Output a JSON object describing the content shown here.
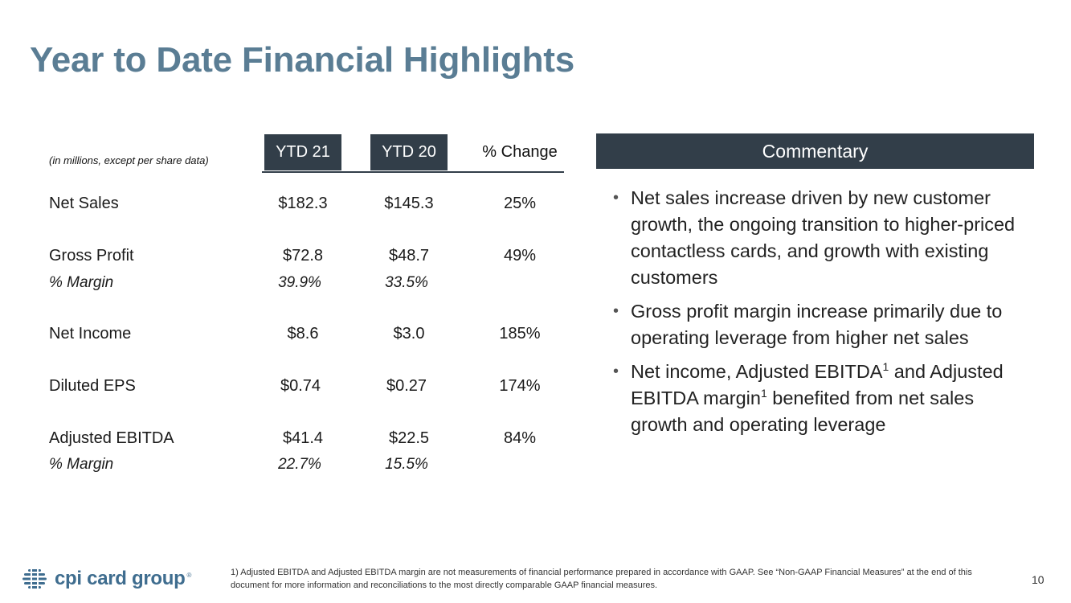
{
  "title": "Year to Date Financial Highlights",
  "table": {
    "units_note": "(in millions, except per share data)",
    "columns": [
      "YTD 21",
      "YTD 20",
      "% Change"
    ],
    "rows": [
      {
        "label": "Net Sales",
        "values": [
          "$182.3",
          "$145.3",
          "25%"
        ],
        "italic": false
      },
      {
        "label": "Gross Profit",
        "values": [
          "$72.8",
          "$48.7",
          "49%"
        ],
        "italic": false
      },
      {
        "label": "% Margin",
        "values": [
          "39.9%",
          "33.5%",
          ""
        ],
        "italic": true
      },
      {
        "label": "Net Income",
        "values": [
          "$8.6",
          "$3.0",
          "185%"
        ],
        "italic": false
      },
      {
        "label": "Diluted EPS",
        "values": [
          "$0.74",
          "$0.27",
          "174%"
        ],
        "italic": false
      },
      {
        "label": "Adjusted EBITDA",
        "values": [
          "$41.4",
          "$22.5",
          "84%"
        ],
        "italic": false
      },
      {
        "label": "% Margin",
        "values": [
          "22.7%",
          "15.5%",
          ""
        ],
        "italic": true
      }
    ]
  },
  "commentary": {
    "header": "Commentary",
    "bullets": {
      "b1": "Net sales increase driven by new customer growth, the ongoing transition to higher-priced contactless cards, and growth with existing customers",
      "b2": "Gross profit margin increase primarily due to operating leverage from higher net sales",
      "b3_part1": "Net income, Adjusted EBITDA",
      "b3_sup1": "1",
      "b3_part2": " and Adjusted EBITDA margin",
      "b3_sup2": "1",
      "b3_part3": " benefited from net sales growth and operating leverage"
    }
  },
  "footer": {
    "logo_text": "cpi card group",
    "logo_mark": "®",
    "footnote": "1) Adjusted EBITDA and Adjusted EBITDA margin are not measurements of financial performance prepared in accordance with GAAP. See “Non-GAAP Financial Measures” at the end of this document for more information and reconciliations to the most directly comparable GAAP financial measures.",
    "page_number": "10"
  },
  "colors": {
    "title": "#5a7d94",
    "header_fill": "#323e49",
    "logo": "#3f6d8f"
  },
  "icons": [
    "cpi-globe-logo-icon",
    "bullet-icon"
  ]
}
